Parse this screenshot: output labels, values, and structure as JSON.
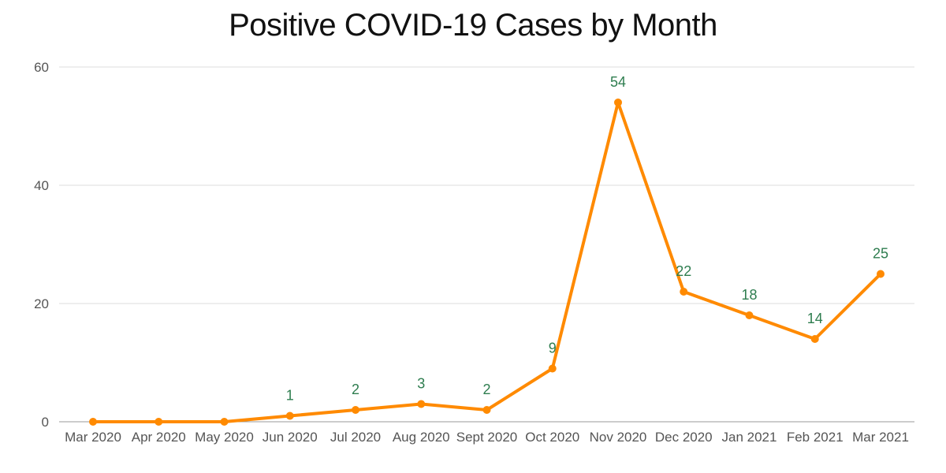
{
  "chart_data": {
    "type": "line",
    "title": "Positive COVID-19 Cases by Month",
    "xlabel": "",
    "ylabel": "",
    "categories": [
      "Mar 2020",
      "Apr 2020",
      "May 2020",
      "Jun 2020",
      "Jul 2020",
      "Aug 2020",
      "Sept 2020",
      "Oct 2020",
      "Nov 2020",
      "Dec 2020",
      "Jan 2021",
      "Feb 2021",
      "Mar 2021"
    ],
    "series": [
      {
        "values": [
          0,
          0,
          0,
          1,
          2,
          3,
          2,
          9,
          54,
          22,
          18,
          14,
          25
        ],
        "color": "#ff8a00"
      }
    ],
    "data_labels": [
      "",
      "",
      "",
      "1",
      "2",
      "3",
      "2",
      "9",
      "54",
      "22",
      "18",
      "14",
      "25"
    ],
    "ylim": [
      0,
      60
    ],
    "yticks": [
      0,
      20,
      40,
      60
    ],
    "grid": true,
    "legend": "none",
    "label_color": "#2e7d4f"
  }
}
